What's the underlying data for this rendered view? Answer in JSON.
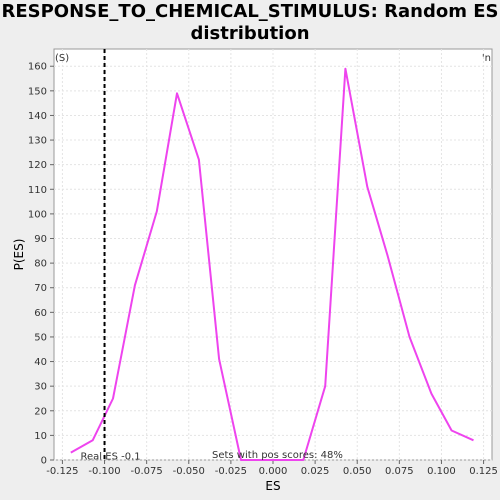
{
  "title": "RESPONSE_TO_CHEMICAL_STIMULUS: Random ES distribution",
  "chart_data": {
    "type": "line",
    "title": "RESPONSE_TO_CHEMICAL_STIMULUS: Random ES distribution",
    "xlabel": "ES",
    "ylabel": "P(ES)",
    "xlim": [
      -0.13,
      0.13
    ],
    "ylim": [
      0,
      167
    ],
    "grid": true,
    "xticks": [
      "-0.125",
      "-0.100",
      "-0.075",
      "-0.050",
      "-0.025",
      "0.000",
      "0.025",
      "0.050",
      "0.075",
      "0.100",
      "0.125"
    ],
    "yticks": [
      "0",
      "10",
      "20",
      "30",
      "40",
      "50",
      "60",
      "70",
      "80",
      "90",
      "100",
      "110",
      "120",
      "130",
      "140",
      "150",
      "160"
    ],
    "series": [
      {
        "color": "#ee44ee",
        "x": [
          -0.12,
          -0.107,
          -0.095,
          -0.082,
          -0.069,
          -0.057,
          -0.044,
          -0.032,
          -0.019,
          -0.006,
          0.006,
          0.018,
          0.031,
          0.043,
          0.056,
          0.068,
          0.081,
          0.094,
          0.106,
          0.119
        ],
        "y": [
          3,
          8,
          25,
          71,
          101,
          149,
          122,
          41,
          0,
          0,
          0,
          0,
          30,
          159,
          111,
          83,
          50,
          27,
          12,
          8
        ]
      }
    ],
    "real_es": {
      "value": -0.1,
      "label": "Real ES -0.1",
      "color": "#000000"
    },
    "annotation": "Sets with pos scores: 48%",
    "corner_left": {
      "text": "(S)",
      "color": "#dd0000"
    },
    "corner_right": {
      "text": "'n",
      "color": "#0000dd"
    }
  }
}
